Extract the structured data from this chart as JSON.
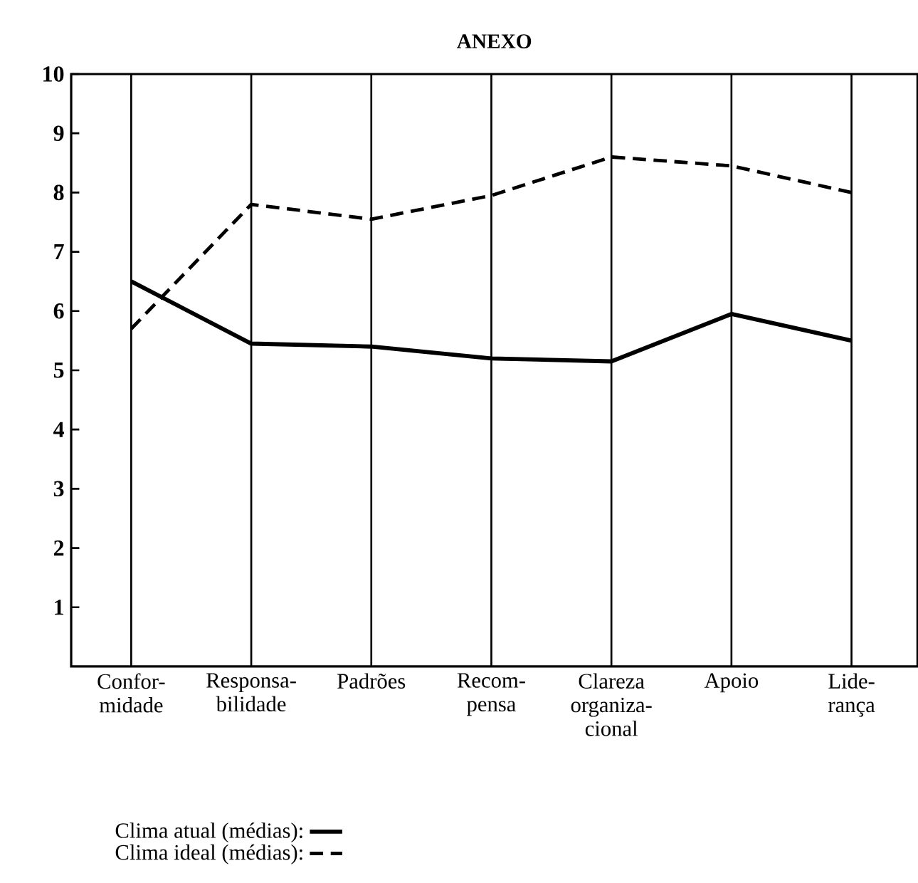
{
  "chart_data": {
    "type": "line",
    "title": "ANEXO",
    "categories": [
      "Confor- midade",
      "Responsa- bilidade",
      "Padrões",
      "Recom- pensa",
      "Clareza organiza- cional",
      "Apoio",
      "Lide- rança"
    ],
    "series": [
      {
        "name": "Clima atual (médias):",
        "color": "#000000",
        "line_style": "solid",
        "values": [
          6.5,
          5.45,
          5.4,
          5.2,
          5.15,
          5.95,
          5.5
        ]
      },
      {
        "name": "Clima ideal (médias):",
        "color": "#000000",
        "line_style": "dashed",
        "values": [
          5.7,
          7.8,
          7.55,
          7.95,
          8.6,
          8.45,
          8.0
        ]
      }
    ],
    "ylim": [
      0,
      10
    ],
    "yticks": [
      1,
      2,
      3,
      4,
      5,
      6,
      7,
      8,
      9,
      10
    ],
    "grid": "x",
    "legend": "bottom",
    "marker": "none"
  }
}
